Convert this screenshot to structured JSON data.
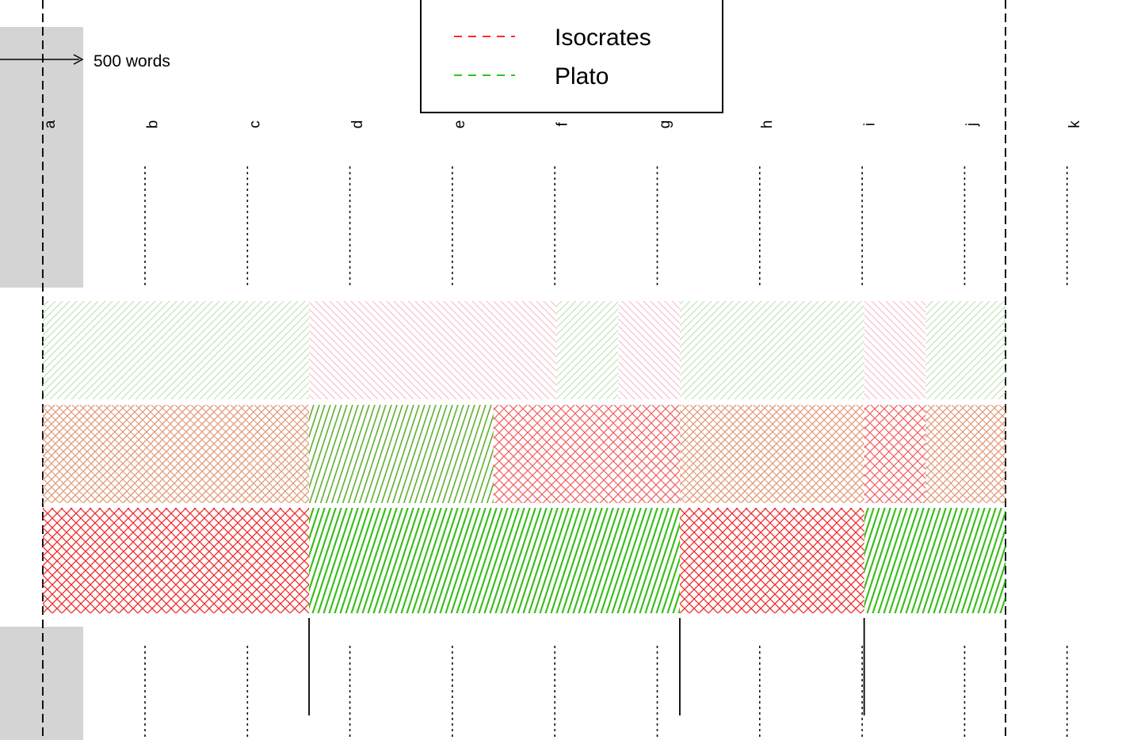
{
  "chart_data": {
    "type": "bar",
    "scale_label": "500 words",
    "legend": {
      "placement": "top-center",
      "entries": [
        {
          "name": "Isocrates",
          "color": "#ff2a2a"
        },
        {
          "name": "Plato",
          "color": "#22cc22"
        }
      ]
    },
    "section_labels": [
      "a",
      "b",
      "c",
      "d",
      "e",
      "f",
      "g",
      "h",
      "i",
      "j",
      "k"
    ],
    "track_span": {
      "start": 0,
      "end": 4700,
      "unit": "words"
    },
    "tracks": [
      {
        "style": "faded",
        "segments": [
          {
            "start": 0,
            "end": 1300,
            "author": "Plato"
          },
          {
            "start": 1300,
            "end": 2510,
            "author": "Isocrates"
          },
          {
            "start": 2510,
            "end": 2810,
            "author": "Plato"
          },
          {
            "start": 2810,
            "end": 3110,
            "author": "Isocrates"
          },
          {
            "start": 3110,
            "end": 4010,
            "author": "Plato"
          },
          {
            "start": 4010,
            "end": 4310,
            "author": "Isocrates"
          },
          {
            "start": 4310,
            "end": 4700,
            "author": "Plato"
          }
        ]
      },
      {
        "style": "mixed",
        "segments": [
          {
            "start": 0,
            "end": 1300,
            "author": "Both"
          },
          {
            "start": 1300,
            "end": 2200,
            "author": "Plato"
          },
          {
            "start": 2200,
            "end": 2810,
            "author": "Isocrates"
          },
          {
            "start": 2810,
            "end": 3110,
            "author": "Isocrates"
          },
          {
            "start": 3110,
            "end": 4010,
            "author": "Both"
          },
          {
            "start": 4010,
            "end": 4310,
            "author": "Isocrates"
          },
          {
            "start": 4310,
            "end": 4700,
            "author": "Both"
          }
        ]
      },
      {
        "style": "solid",
        "segments": [
          {
            "start": 0,
            "end": 1300,
            "author": "Isocrates"
          },
          {
            "start": 1300,
            "end": 3110,
            "author": "Plato"
          },
          {
            "start": 3110,
            "end": 4010,
            "author": "Isocrates"
          },
          {
            "start": 4010,
            "end": 4700,
            "author": "Plato"
          }
        ]
      }
    ],
    "boundaries": [
      1300,
      3110,
      4010
    ]
  }
}
